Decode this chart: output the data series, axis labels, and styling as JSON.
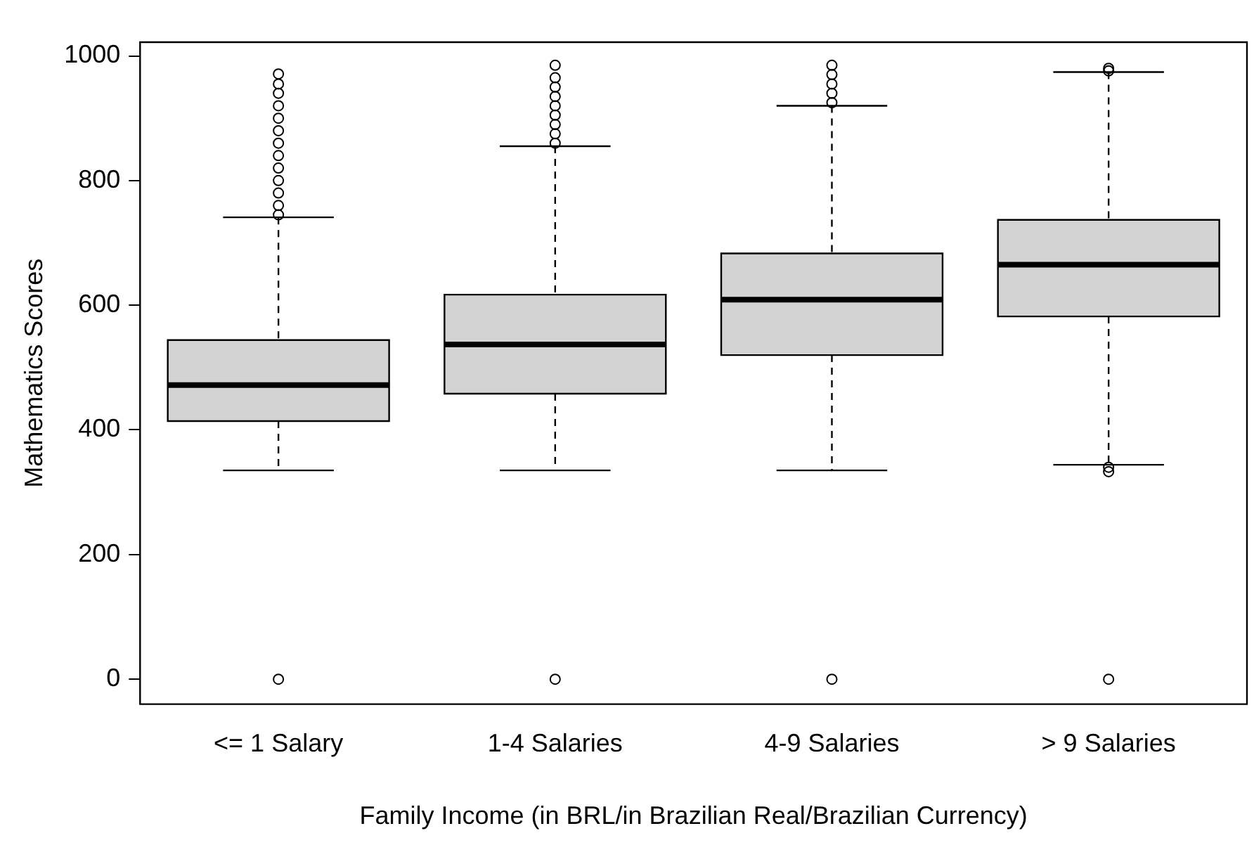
{
  "chart_data": {
    "type": "box",
    "xlabel": "Family Income (in BRL/in Brazilian Real/Brazilian Currency)",
    "ylabel": "Mathematics Scores",
    "categories": [
      "<= 1 Salary",
      "1-4 Salaries",
      "4-9 Salaries",
      "> 9 Salaries"
    ],
    "color": "#d3d3d3",
    "boxes": [
      {
        "low": 335,
        "q1": 414,
        "median": 472,
        "q3": 544,
        "high": 741,
        "outliers": [
          0,
          745,
          760,
          780,
          800,
          820,
          840,
          860,
          880,
          900,
          920,
          940,
          955,
          971
        ]
      },
      {
        "low": 335,
        "q1": 458,
        "median": 537,
        "q3": 617,
        "high": 855,
        "outliers": [
          0,
          860,
          875,
          890,
          905,
          920,
          935,
          950,
          965,
          985
        ]
      },
      {
        "low": 335,
        "q1": 520,
        "median": 609,
        "q3": 683,
        "high": 920,
        "outliers": [
          0,
          925,
          940,
          955,
          970,
          985
        ]
      },
      {
        "low": 344,
        "q1": 582,
        "median": 665,
        "q3": 737,
        "high": 974,
        "outliers": [
          0,
          333,
          340,
          976,
          980
        ]
      }
    ],
    "ylim": [
      -40,
      1022
    ],
    "yticks": [
      0,
      200,
      400,
      600,
      800,
      1000
    ],
    "grid": false
  }
}
